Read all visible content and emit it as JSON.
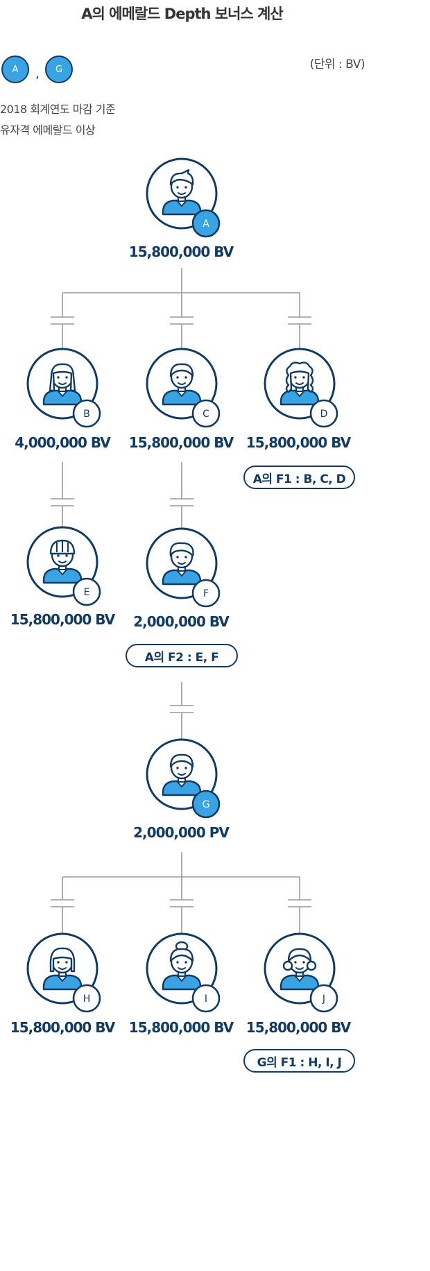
{
  "title": "A의 에메랄드 Depth 보너스 계산",
  "unit": "(단위 : BV)",
  "qualified": [
    {
      "label": "A"
    },
    {
      "label": "G"
    }
  ],
  "qualified_separator": ",",
  "criteria": [
    "2018 회계연도 마감 기준",
    "유자격 에메랄드 이상"
  ],
  "nodes": {
    "A": {
      "badge": "A",
      "value": "15,800,000 BV",
      "accent": "#3aa3e3"
    },
    "B": {
      "badge": "B",
      "value": "4,000,000 BV"
    },
    "C": {
      "badge": "C",
      "value": "15,800,000 BV"
    },
    "D": {
      "badge": "D",
      "value": "15,800,000 BV"
    },
    "E": {
      "badge": "E",
      "value": "15,800,000 BV"
    },
    "F": {
      "badge": "F",
      "value": "2,000,000 BV"
    },
    "G": {
      "badge": "G",
      "value": "2,000,000 PV",
      "accent": "#3aa3e3"
    },
    "H": {
      "badge": "H",
      "value": "15,800,000 BV"
    },
    "I": {
      "badge": "I",
      "value": "15,800,000 BV"
    },
    "J": {
      "badge": "J",
      "value": "15,800,000 BV"
    }
  },
  "pills": {
    "a_f1": "A의 F1 : B, C, D",
    "a_f2": "A의 F2 : E, F",
    "g_f1": "G의 F1 : H, I, J"
  },
  "colors": {
    "navy": "#123b63",
    "accent": "#3aa3e3",
    "connector": "#999999"
  }
}
